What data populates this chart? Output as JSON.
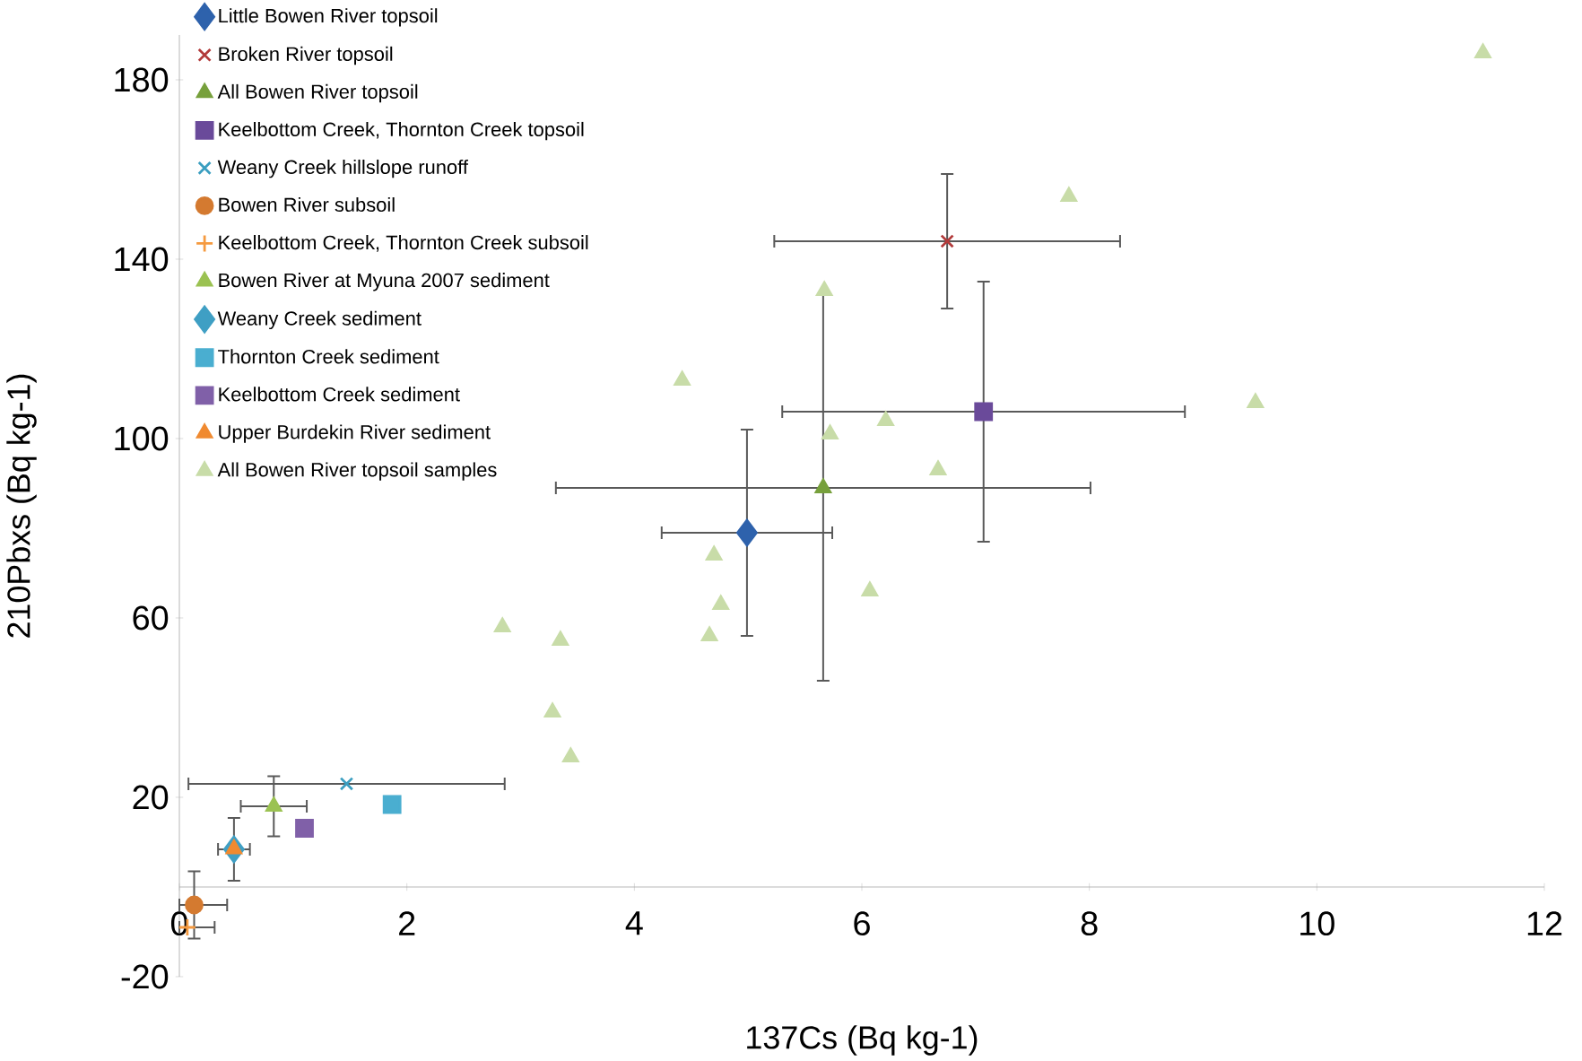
{
  "chart_data": {
    "type": "scatter",
    "xlabel": "137Cs (Bq kg-1)",
    "ylabel": "210Pbxs (Bq kg-1)",
    "xlim": [
      0,
      12
    ],
    "ylim": [
      -20,
      190
    ],
    "xticks": [
      0,
      2,
      4,
      6,
      8,
      10,
      12
    ],
    "yticks": [
      -20,
      20,
      60,
      100,
      140,
      180
    ],
    "grid": false,
    "legend": "top left",
    "series": [
      {
        "name": "Little Bowen River topsoil",
        "color": "#2e62ac",
        "marker": "diamond",
        "x": [
          4.99
        ],
        "values": [
          79
        ],
        "xerrors": [
          0.75
        ],
        "errors": [
          23
        ]
      },
      {
        "name": "Broken River topsoil",
        "color": "#b23a3a",
        "marker": "cross",
        "x": [
          6.75
        ],
        "values": [
          144
        ],
        "xerrors": [
          1.52
        ],
        "errors": [
          15
        ]
      },
      {
        "name": "All Bowen River topsoil",
        "color": "#77a03c",
        "marker": "triangle",
        "x": [
          5.66
        ],
        "values": [
          89
        ],
        "xerrors": [
          2.35
        ],
        "errors": [
          43
        ]
      },
      {
        "name": "Keelbottom Creek, Thornton Creek topsoil",
        "color": "#6a4a9a",
        "marker": "square",
        "x": [
          7.07
        ],
        "values": [
          106
        ],
        "xerrors": [
          1.77
        ],
        "errors": [
          29
        ]
      },
      {
        "name": "Weany Creek hillslope runoff",
        "color": "#3a9ec0",
        "marker": "cross",
        "x": [
          1.47
        ],
        "values": [
          23
        ],
        "xerrors": [
          1.39
        ]
      },
      {
        "name": "Bowen River subsoil",
        "color": "#d47a30",
        "marker": "circle",
        "x": [
          0.13
        ],
        "values": [
          -4
        ],
        "xerrors": [
          [
            0,
            0.42
          ]
        ],
        "errors": [
          7.5
        ]
      },
      {
        "name": "Keelbottom Creek, Thornton Creek subsoil",
        "color": "#f59a40",
        "marker": "plus",
        "x": [
          0.07
        ],
        "values": [
          -9
        ],
        "xerrors": [
          [
            0,
            0.31
          ]
        ]
      },
      {
        "name": "Bowen River at Myuna 2007 sediment",
        "color": "#9bc252",
        "marker": "triangle",
        "x": [
          0.83
        ],
        "values": [
          18
        ],
        "xerrors": [
          0.29
        ],
        "errors": [
          6.7
        ]
      },
      {
        "name": "Weany Creek sediment",
        "color": "#3f9fc4",
        "marker": "diamond",
        "x": [
          0.48
        ],
        "values": [
          8.4
        ],
        "xerrors": [
          0.14
        ],
        "errors": [
          7
        ]
      },
      {
        "name": "Thornton Creek sediment",
        "color": "#4aaed0",
        "marker": "square",
        "x": [
          1.87
        ],
        "values": [
          18.4
        ]
      },
      {
        "name": "Keelbottom Creek sediment",
        "color": "#8060a8",
        "marker": "square",
        "x": [
          1.1
        ],
        "values": [
          13.1
        ]
      },
      {
        "name": "Upper Burdekin River sediment",
        "color": "#f08a30",
        "marker": "triangle",
        "x": [
          0.48
        ],
        "values": [
          8.5
        ]
      },
      {
        "name": "All Bowen River topsoil samples",
        "color": "#c8dca8",
        "marker": "triangle",
        "x": [
          11.46,
          7.82,
          5.67,
          4.42,
          9.46,
          6.21,
          5.72,
          6.67,
          4.7,
          4.76,
          6.07,
          4.66,
          2.84,
          3.35,
          3.28,
          3.44
        ],
        "values": [
          186,
          154,
          133,
          113,
          108,
          104,
          101,
          93,
          74,
          63,
          66,
          56,
          58,
          55,
          39,
          29
        ]
      }
    ]
  }
}
